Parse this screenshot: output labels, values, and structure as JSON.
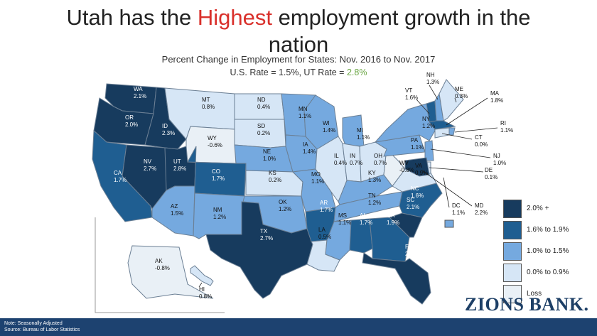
{
  "title": {
    "part1": "Utah has the ",
    "highlight": "Highest",
    "part2": " employment growth in the",
    "line2": "nation"
  },
  "subtitle": "Percent Change in Employment for States: Nov. 2016 to Nov. 2017",
  "rates": {
    "us": "U.S. Rate = 1.5%, UT Rate = ",
    "ut": "2.8%"
  },
  "legend": [
    {
      "label": "2.0% +",
      "color": "#173b5e"
    },
    {
      "label": "1.6% to 1.9%",
      "color": "#1f5e91"
    },
    {
      "label": "1.0% to 1.5%",
      "color": "#75a9df"
    },
    {
      "label": "0.0% to 0.9%",
      "color": "#d6e6f6"
    },
    {
      "label": "Loss",
      "color": "#e9f0f6"
    }
  ],
  "states": [
    {
      "abbr": "WA",
      "value": "2.1%"
    },
    {
      "abbr": "OR",
      "value": "2.0%"
    },
    {
      "abbr": "CA",
      "value": "1.7%"
    },
    {
      "abbr": "ID",
      "value": "2.3%"
    },
    {
      "abbr": "NV",
      "value": "2.7%"
    },
    {
      "abbr": "UT",
      "value": "2.8%"
    },
    {
      "abbr": "AZ",
      "value": "1.5%"
    },
    {
      "abbr": "MT",
      "value": "0.8%"
    },
    {
      "abbr": "WY",
      "value": "-0.6%"
    },
    {
      "abbr": "CO",
      "value": "1.7%"
    },
    {
      "abbr": "NM",
      "value": "1.2%"
    },
    {
      "abbr": "ND",
      "value": "0.4%"
    },
    {
      "abbr": "SD",
      "value": "0.2%"
    },
    {
      "abbr": "NE",
      "value": "1.0%"
    },
    {
      "abbr": "KS",
      "value": "0.2%"
    },
    {
      "abbr": "OK",
      "value": "1.2%"
    },
    {
      "abbr": "TX",
      "value": "2.7%"
    },
    {
      "abbr": "MN",
      "value": "1.1%"
    },
    {
      "abbr": "IA",
      "value": "1.4%"
    },
    {
      "abbr": "MO",
      "value": "1.1%"
    },
    {
      "abbr": "AR",
      "value": "1.7%"
    },
    {
      "abbr": "LA",
      "value": "0.5%"
    },
    {
      "abbr": "WI",
      "value": "1.4%"
    },
    {
      "abbr": "IL",
      "value": "0.4%"
    },
    {
      "abbr": "MI",
      "value": "1.1%"
    },
    {
      "abbr": "IN",
      "value": "0.7%"
    },
    {
      "abbr": "OH",
      "value": "0.7%"
    },
    {
      "abbr": "KY",
      "value": "1.3%"
    },
    {
      "abbr": "TN",
      "value": "1.2%"
    },
    {
      "abbr": "MS",
      "value": "1.1%"
    },
    {
      "abbr": "AL",
      "value": "1.7%"
    },
    {
      "abbr": "GA",
      "value": "1.9%"
    },
    {
      "abbr": "FL",
      "value": "2.3%"
    },
    {
      "abbr": "SC",
      "value": "2.1%"
    },
    {
      "abbr": "NC",
      "value": "1.6%"
    },
    {
      "abbr": "VA",
      "value": "0.9%"
    },
    {
      "abbr": "WV",
      "value": "-0.8%"
    },
    {
      "abbr": "PA",
      "value": "1.1%"
    },
    {
      "abbr": "NY",
      "value": "1.2%"
    },
    {
      "abbr": "VT",
      "value": "1.6%"
    },
    {
      "abbr": "NH",
      "value": "1.3%"
    },
    {
      "abbr": "ME",
      "value": "0.3%"
    },
    {
      "abbr": "MA",
      "value": "1.8%"
    },
    {
      "abbr": "RI",
      "value": "1.1%"
    },
    {
      "abbr": "CT",
      "value": "0.0%"
    },
    {
      "abbr": "NJ",
      "value": "1.0%"
    },
    {
      "abbr": "DE",
      "value": "0.1%"
    },
    {
      "abbr": "MD",
      "value": "2.2%"
    },
    {
      "abbr": "DC",
      "value": "1.1%"
    },
    {
      "abbr": "AK",
      "value": "-0.8%"
    },
    {
      "abbr": "HI",
      "value": "0.8%"
    }
  ],
  "logo": "ZIONS BANK.",
  "footer": {
    "note": "Note: Seasonally Adjusted",
    "source": "Source: Bureau of Labor Statistics"
  }
}
